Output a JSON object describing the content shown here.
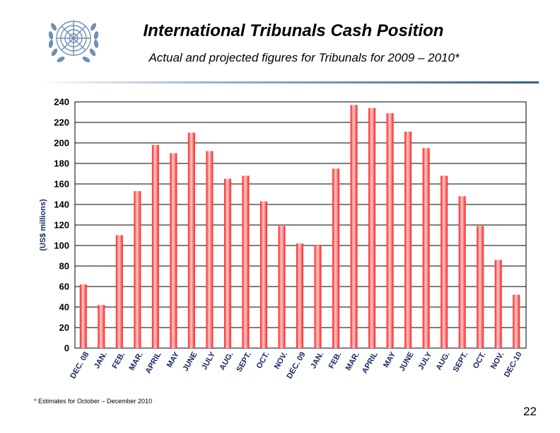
{
  "header": {
    "title": "International Tribunals Cash Position",
    "subtitle": "Actual and projected figures for Tribunals for 2009 – 2010*"
  },
  "footer": {
    "footnote": "* Estimates for October – December 2010",
    "page_number": "22"
  },
  "logo": {
    "name": "un-emblem-icon",
    "color": "#6f8fb3"
  },
  "chart_data": {
    "type": "bar",
    "title": "",
    "xlabel": "",
    "ylabel": "(US$ millions)",
    "ylim": [
      0,
      240
    ],
    "yticks": [
      0,
      20,
      40,
      60,
      80,
      100,
      120,
      140,
      160,
      180,
      200,
      220,
      240
    ],
    "grid": true,
    "legend": "none",
    "bar_color": "#ff1a1a",
    "categories": [
      "DEC. 08",
      "JAN.",
      "FEB.",
      "MAR.",
      "APRIL",
      "MAY",
      "JUNE",
      "JULY",
      "AUG.",
      "SEPT.",
      "OCT.",
      "NOV.",
      "DEC. 09",
      "JAN.",
      "FEB.",
      "MAR.",
      "APRIL",
      "MAY",
      "JUNE",
      "JULY",
      "AUG.",
      "SEPT.",
      "OCT.",
      "NOV.",
      "DEC-10"
    ],
    "values": [
      62,
      42,
      110,
      153,
      198,
      190,
      210,
      192,
      165,
      168,
      143,
      119,
      102,
      100,
      175,
      237,
      234,
      229,
      211,
      195,
      168,
      148,
      119,
      86,
      52
    ]
  }
}
